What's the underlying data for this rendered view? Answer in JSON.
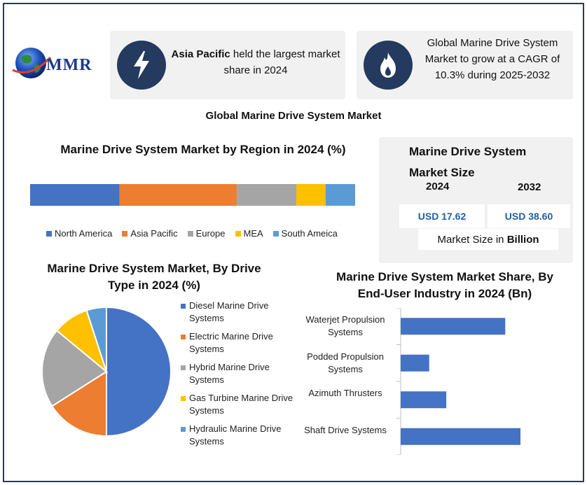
{
  "logo": {
    "text": "MMR"
  },
  "card1": {
    "bold": "Asia Pacific",
    "rest": " held the largest market share in 2024",
    "icon": "lightning-icon"
  },
  "card2": {
    "text": "Global Marine Drive System Market to grow at a CAGR of 10.3% during 2025-2032",
    "icon": "flame-icon"
  },
  "main_title": "Global Marine Drive System Market",
  "size_panel": {
    "title_line1": "Marine Drive System",
    "title_line2": "Market Size",
    "year1": "2024",
    "year2": "2032",
    "value1": "USD 17.62",
    "value2": "USD 38.60",
    "unit_prefix": "Market Size in ",
    "unit_bold": "Billion"
  },
  "colors": {
    "blue": "#4472c4",
    "orange": "#ed7d31",
    "gray": "#a5a5a5",
    "yellow": "#ffc000",
    "lightblue": "#5b9bd5",
    "navy": "#243a5e"
  },
  "chart_data": [
    {
      "type": "bar",
      "title": "Marine Drive System Market by Region in 2024 (%)",
      "stacked": true,
      "orientation": "horizontal",
      "series": [
        {
          "name": "North America",
          "value": 27.5,
          "color": "#4472c4"
        },
        {
          "name": "Asia Pacific",
          "value": 36.1,
          "color": "#ed7d31"
        },
        {
          "name": "Europe",
          "value": 18.3,
          "color": "#a5a5a5"
        },
        {
          "name": "MEA",
          "value": 9.0,
          "color": "#ffc000"
        },
        {
          "name": "South Ameica",
          "value": 9.1,
          "color": "#5b9bd5"
        }
      ],
      "legend": "bottom"
    },
    {
      "type": "pie",
      "title": "Marine Drive System Market, By Drive Type in 2024 (%)",
      "slices": [
        {
          "name": "Diesel Marine Drive Systems",
          "value": 50,
          "color": "#4472c4"
        },
        {
          "name": "Electric Marine Drive Systems",
          "value": 16,
          "color": "#ed7d31"
        },
        {
          "name": "Hybrid Marine Drive Systems",
          "value": 20,
          "color": "#a5a5a5"
        },
        {
          "name": "Gas Turbine Marine Drive Systems",
          "value": 9,
          "color": "#ffc000"
        },
        {
          "name": "Hydraulic Marine Drive Systems",
          "value": 5,
          "color": "#5b9bd5"
        }
      ],
      "legend": "right"
    },
    {
      "type": "bar",
      "orientation": "horizontal",
      "title": "Marine Drive System Market Share, By End-User Industry in 2024 (Bn)",
      "categories": [
        "Waterjet Propulsion Systems",
        "Podded Propulsion Systems",
        "Azimuth Thrusters",
        "Shaft Drive Systems"
      ],
      "values": [
        5.5,
        1.5,
        2.4,
        6.3
      ],
      "xlim": [
        0,
        7
      ],
      "color": "#4472c4"
    }
  ]
}
